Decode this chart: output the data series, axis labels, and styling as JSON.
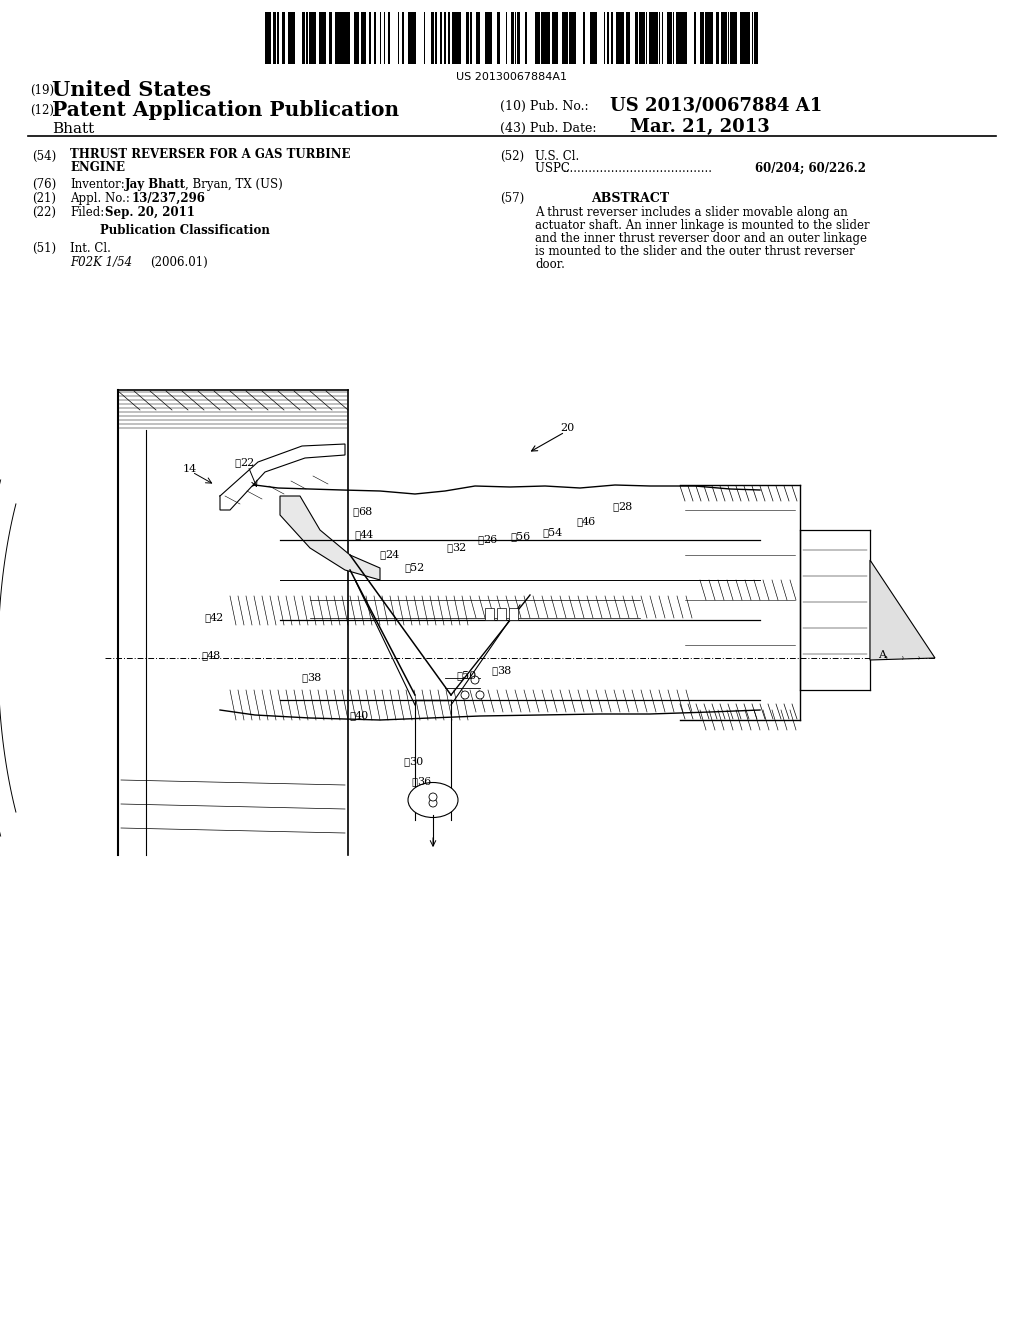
{
  "barcode_text": "US 20130067884A1",
  "country": "United States",
  "doc_type_num": "(19)",
  "doc_type_num2": "(12)",
  "doc_type": "Patent Application Publication",
  "pub_no_label": "(10) Pub. No.:",
  "pub_no": "US 2013/0067884 A1",
  "pub_date_label": "(43) Pub. Date:",
  "pub_date": "Mar. 21, 2013",
  "inventor_last": "Bhatt",
  "field54_num": "(54)",
  "field54_line1": "THRUST REVERSER FOR A GAS TURBINE",
  "field54_line2": "ENGINE",
  "field52_num": "(52)",
  "field52_label": "U.S. Cl.",
  "uspc_dots": "USPC ",
  "uspc_values": "60/204; 60/226.2",
  "field76_num": "(76)",
  "field76_label": "Inventor:",
  "inventor_bold": "Jay Bhatt",
  "inventor_rest": ", Bryan, TX (US)",
  "field21_num": "(21)",
  "field21_label": "Appl. No.:",
  "appl_no": "13/237,296",
  "field57_num": "(57)",
  "field57_label": "ABSTRACT",
  "abstract_text": "A thrust reverser includes a slider movable along an actuator shaft. An inner linkage is mounted to the slider and the inner thrust reverser door and an outer linkage is mounted to the slider and the outer thrust reverser door.",
  "field22_num": "(22)",
  "field22_label": "Filed:",
  "filed_date": "Sep. 20, 2011",
  "pub_class_label": "Publication Classification",
  "field51_num": "(51)",
  "field51_label": "Int. Cl.",
  "int_cl_code": "F02K 1/54",
  "int_cl_date": "(2006.01)",
  "bg_color": "#ffffff",
  "text_color": "#000000"
}
